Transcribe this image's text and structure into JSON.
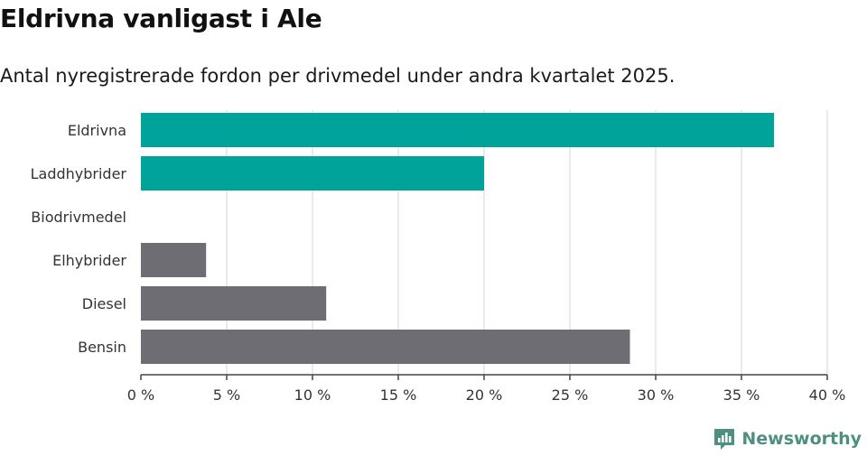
{
  "header": {
    "title": "Eldrivna vanligast i Ale",
    "subtitle": "Antal nyregistrerade fordon per drivmedel under andra kvartalet 2025."
  },
  "brand": {
    "name": "Newsworthy",
    "icon": "newsworthy-logo-icon",
    "color": "#4d8f81"
  },
  "chart_data": {
    "type": "bar",
    "orientation": "horizontal",
    "categories": [
      "Eldrivna",
      "Laddhybrider",
      "Biodrivmedel",
      "Elhybrider",
      "Diesel",
      "Bensin"
    ],
    "values": [
      36.9,
      20.0,
      0,
      3.8,
      10.8,
      28.5
    ],
    "bar_colors": [
      "#00a39a",
      "#00a39a",
      "#00a39a",
      "#6e6d74",
      "#6e6d74",
      "#6e6d74"
    ],
    "xlim": [
      0,
      40
    ],
    "x_ticks": [
      0,
      5,
      10,
      15,
      20,
      25,
      30,
      35,
      40
    ],
    "x_tick_labels": [
      "0 %",
      "5 %",
      "10 %",
      "15 %",
      "20 %",
      "25 %",
      "30 %",
      "35 %",
      "40 %"
    ],
    "grid": true,
    "xlabel": "",
    "ylabel": ""
  }
}
